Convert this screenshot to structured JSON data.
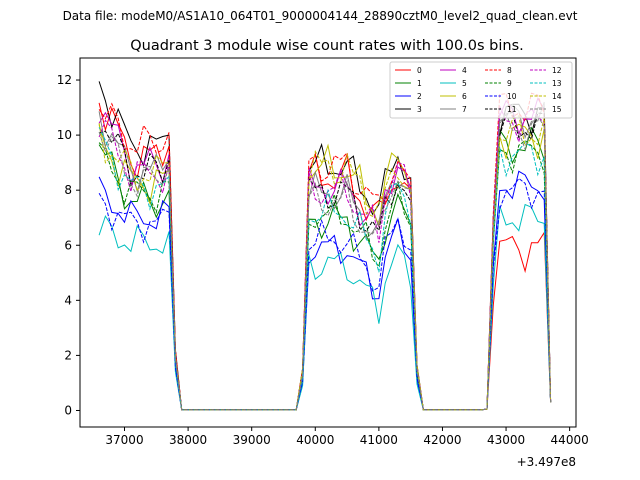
{
  "header": {
    "data_file": "Data file: modeM0/AS1A10_064T01_9000004144_28890cztM0_level2_quad_clean.evt"
  },
  "chart_data": {
    "type": "line",
    "title": "Quadrant 3 module wise count rates with 100.0s bins.",
    "xlabel": "",
    "ylabel": "",
    "x_offset_label": "+3.497e8",
    "xlim": [
      36300,
      44100
    ],
    "ylim": [
      -0.6,
      12.8
    ],
    "x_ticks": [
      37000,
      38000,
      39000,
      40000,
      41000,
      42000,
      43000,
      44000
    ],
    "x_tick_labels": [
      "37000",
      "38000",
      "39000",
      "40000",
      "41000",
      "42000",
      "43000",
      "44000"
    ],
    "y_ticks": [
      0,
      2,
      4,
      6,
      8,
      10,
      12
    ],
    "y_tick_labels": [
      "0",
      "2",
      "4",
      "6",
      "8",
      "10",
      "12"
    ],
    "legend_location": "top-right",
    "segments": [
      {
        "x_start": 36600,
        "x_end": 37700,
        "step": 100
      },
      {
        "x_start": 37800,
        "x_end": 39700,
        "step": 100
      },
      {
        "x_start": 39800,
        "x_end": 40500,
        "step": 100
      },
      {
        "x_start": 40600,
        "x_end": 41500,
        "step": 100
      },
      {
        "x_start": 41600,
        "x_end": 41800,
        "step": 100
      },
      {
        "x_start": 42700,
        "x_end": 43700,
        "step": 100
      }
    ],
    "series": [
      {
        "name": "0",
        "color": "#ff0000",
        "dashed": false,
        "base": [
          11.4,
          9.2,
          8.5,
          7.6,
          5.9
        ],
        "amp": 0.55
      },
      {
        "name": "1",
        "color": "#008000",
        "dashed": false,
        "base": [
          9.6,
          7.6,
          6.9,
          6.6,
          9.6
        ],
        "amp": 0.5
      },
      {
        "name": "2",
        "color": "#0000ff",
        "dashed": false,
        "base": [
          7.9,
          7.0,
          5.9,
          5.6,
          8.2
        ],
        "amp": 0.45
      },
      {
        "name": "3",
        "color": "#000000",
        "dashed": false,
        "base": [
          11.9,
          9.6,
          8.9,
          8.3,
          10.8
        ],
        "amp": 0.5
      },
      {
        "name": "4",
        "color": "#bf00bf",
        "dashed": false,
        "base": [
          11.2,
          8.9,
          8.1,
          7.9,
          10.7
        ],
        "amp": 0.5
      },
      {
        "name": "5",
        "color": "#00bfbf",
        "dashed": false,
        "base": [
          6.6,
          6.1,
          5.3,
          4.8,
          7.0
        ],
        "amp": 0.45
      },
      {
        "name": "6",
        "color": "#bfbf00",
        "dashed": false,
        "base": [
          9.9,
          8.3,
          8.8,
          8.3,
          10.0
        ],
        "amp": 0.55
      },
      {
        "name": "7",
        "color": "#808080",
        "dashed": false,
        "base": [
          10.8,
          8.7,
          7.9,
          7.7,
          10.6
        ],
        "amp": 0.5
      },
      {
        "name": "8",
        "color": "#ff0000",
        "dashed": true,
        "base": [
          11.1,
          9.7,
          8.9,
          8.0,
          11.0
        ],
        "amp": 0.5
      },
      {
        "name": "9",
        "color": "#008000",
        "dashed": true,
        "base": [
          9.3,
          7.9,
          7.1,
          6.8,
          9.4
        ],
        "amp": 0.5
      },
      {
        "name": "10",
        "color": "#0000ff",
        "dashed": true,
        "base": [
          7.6,
          6.8,
          6.2,
          5.9,
          8.0
        ],
        "amp": 0.45
      },
      {
        "name": "11",
        "color": "#000000",
        "dashed": true,
        "base": [
          10.7,
          8.7,
          7.9,
          7.4,
          10.3
        ],
        "amp": 0.5
      },
      {
        "name": "12",
        "color": "#bf00bf",
        "dashed": true,
        "base": [
          10.5,
          8.6,
          8.0,
          7.9,
          10.5
        ],
        "amp": 0.5
      },
      {
        "name": "13",
        "color": "#00bfbf",
        "dashed": true,
        "base": [
          9.9,
          8.1,
          7.2,
          7.2,
          9.3
        ],
        "amp": 0.5
      },
      {
        "name": "14",
        "color": "#bfbf00",
        "dashed": true,
        "base": [
          10.0,
          8.6,
          8.8,
          7.9,
          10.1
        ],
        "amp": 0.55
      },
      {
        "name": "15",
        "color": "#808080",
        "dashed": true,
        "base": [
          10.3,
          8.4,
          7.6,
          7.5,
          10.2
        ],
        "amp": 0.5
      }
    ]
  }
}
